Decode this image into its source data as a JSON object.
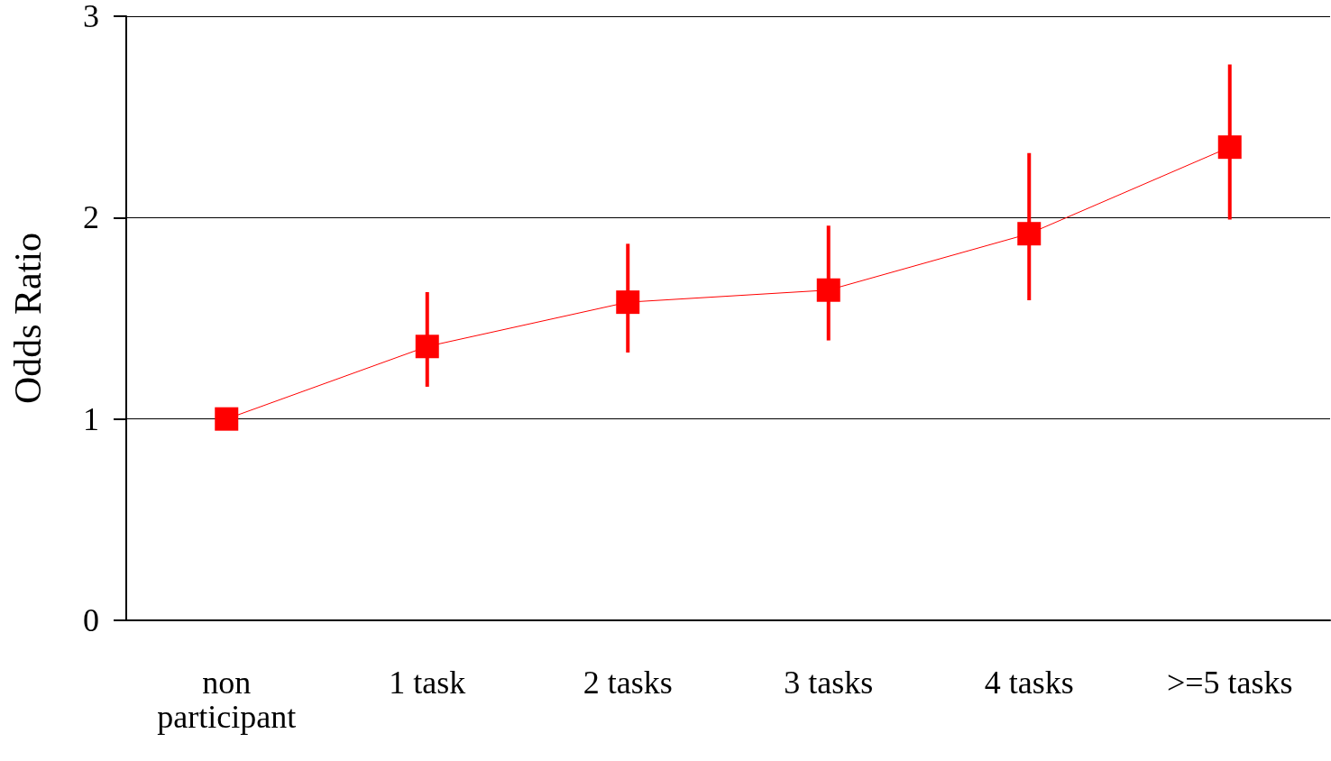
{
  "chart_data": {
    "type": "line",
    "ylabel": "Odds Ratio",
    "categories": [
      "non\nparticipant",
      "1 task",
      "2 tasks",
      "3 tasks",
      "4 tasks",
      ">=5 tasks"
    ],
    "series": [
      {
        "color": "#ff0000",
        "values": [
          1.0,
          1.36,
          1.58,
          1.64,
          1.92,
          2.35
        ],
        "errors": [
          null,
          [
            1.16,
            1.63
          ],
          [
            1.33,
            1.87
          ],
          [
            1.39,
            1.96
          ],
          [
            1.59,
            2.32
          ],
          [
            1.99,
            2.76
          ]
        ]
      }
    ],
    "ylim": [
      0,
      3
    ],
    "yticks": [
      0,
      1,
      2,
      3
    ],
    "grid": "y",
    "marker": "square",
    "line_style": "solid"
  }
}
